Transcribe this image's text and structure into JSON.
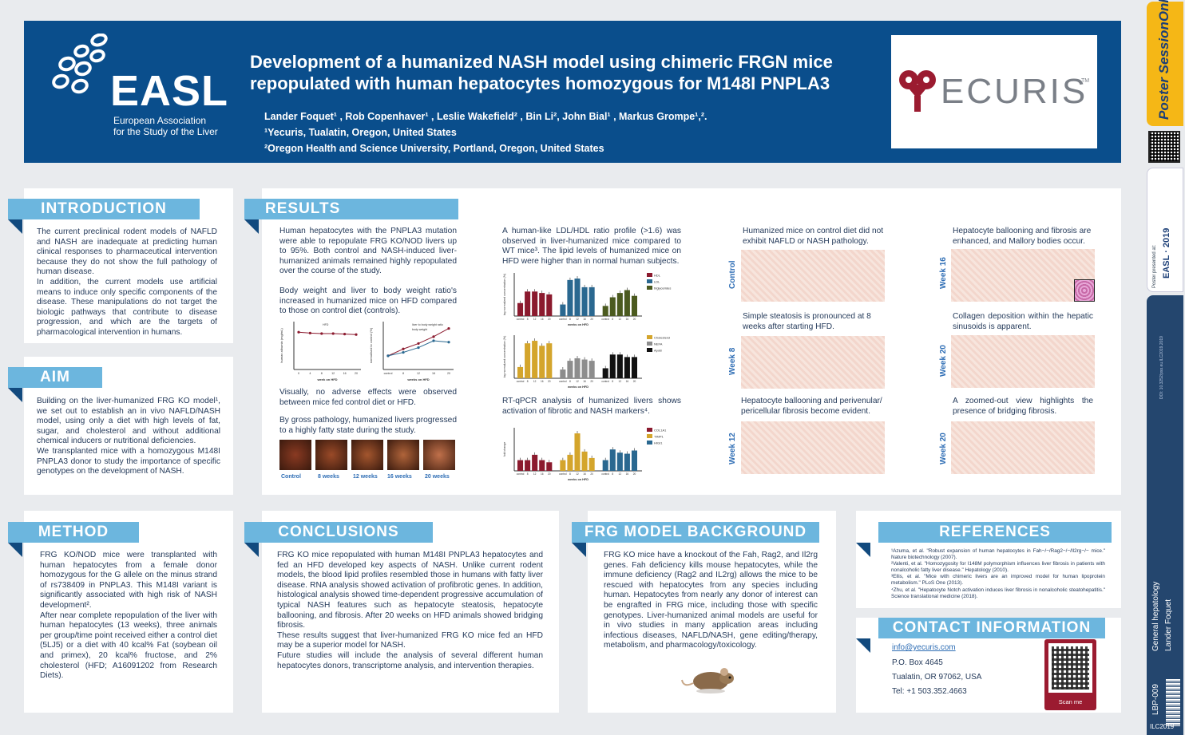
{
  "header": {
    "org_name": "EASL",
    "org_full": "European Association\nfor the Study of the Liver",
    "title": "Development of a humanized NASH model using chimeric FRGN mice repopulated with human hepatocytes homozygous for M148I PNPLA3",
    "authors": "Lander Foquet¹ , Rob Copenhaver¹ , Leslie Wakefield² , Bin Li², John Bial¹ , Markus Grompe¹,².",
    "affil1": "¹Yecuris, Tualatin, Oregon, United States",
    "affil2": "²Oregon Health and Science University, Portland, Oregon, United States",
    "sponsor": "ECURIS",
    "tm": "TM"
  },
  "intro": {
    "heading": "INTRODUCTION",
    "p1": "The current preclinical rodent models of NAFLD and NASH are inadequate at predicting human clinical responses to pharmaceutical intervention because they do not show the full pathology of human disease.",
    "p2": "In addition, the current models use artificial means to induce only specific components of the disease. These manipulations do not target the biologic pathways that contribute to disease progression, and which are the targets of pharmacological intervention in humans."
  },
  "aim": {
    "heading": "AIM",
    "p1": "Building on the liver-humanized FRG KO model¹, we set out to establish an in vivo NAFLD/NASH model, using only a diet with high levels of fat, sugar, and cholesterol and without additional chemical inducers or nutritional deficiencies.",
    "p2": "We transplanted mice with a homozygous M148I PNPLA3 donor to study the importance of specific genotypes on the development of NASH."
  },
  "method": {
    "heading": "METHOD",
    "p1": "FRG KO/NOD mice were transplanted with human hepatocytes from a female donor homozygous for the G allele on the minus strand of rs738409 in PNPLA3. This M148I variant is significantly associated with high risk of NASH development².",
    "p2": "After near complete repopulation of the liver with human hepatocytes (13 weeks), three animals per group/time point received either a control diet (5LJ5) or a diet with 40 kcal% Fat (soybean oil and primex), 20 kcal% fructose, and 2% cholesterol (HFD; A16091202 from Research Diets)."
  },
  "results": {
    "heading": "RESULTS",
    "p1": "Human hepatocytes with the PNPLA3 mutation were able to repopulate FRG KO/NOD livers up to 95%. Both control and NASH-induced liver-humanized animals remained highly repopulated over the course of the study.",
    "p2": "Body weight and liver to body weight ratio's increased in humanized mice on HFD compared to those on control diet (controls).",
    "p3": "Visually, no adverse effects were observed between mice fed control diet or HFD.",
    "p4": "By gross pathology, humanized livers progressed to a highly fatty state during the study.",
    "photos": [
      "Control",
      "8 weeks",
      "12 weeks",
      "16 weeks",
      "20 weeks"
    ],
    "p5": "A human-like LDL/HDL ratio profile (>1.6) was observed in liver-humanized mice compared to WT mice³. The lipid levels of humanized mice on HFD were higher than in normal human subjects.",
    "p6": "RT-qPCR analysis of humanized livers shows activation of fibrotic and NASH markers⁴.",
    "h1": "Humanized mice on control diet did not exhibit NAFLD or NASH pathology.",
    "h2": "Simple steatosis is pronounced at 8 weeks after starting HFD.",
    "h3": "Hepatocyte ballooning and perivenular/ pericellular fibrosis become evident.",
    "h4": "Hepatocyte ballooning and fibrosis are enhanced, and Mallory bodies occur.",
    "h5": "Collagen deposition within the hepatic sinusoids is apparent.",
    "h6": "A zoomed-out view highlights the presence of bridging fibrosis.",
    "row_labels": [
      "Control",
      "Week 8",
      "Week 12",
      "Week 16",
      "Week 20",
      "Week 20"
    ]
  },
  "chart_data": [
    {
      "type": "line",
      "xlabel": "week on HFD",
      "ylabel": "human albumin (mg/mL)",
      "x": [
        0,
        4,
        8,
        12,
        16,
        20
      ],
      "series": [
        {
          "name": "HFD",
          "values": [
            7.8,
            7.6,
            7.5,
            7.5,
            7.4,
            7.3
          ]
        }
      ],
      "ylim": [
        0,
        10
      ]
    },
    {
      "type": "line",
      "xlabel": "weeks on HFD",
      "ylabel": "normalised to control (%)",
      "x": [
        "control",
        8,
        12,
        16,
        20
      ],
      "series": [
        {
          "name": "liver to body weight ratio",
          "values": [
            100,
            110,
            118,
            128,
            140
          ]
        },
        {
          "name": "body weight",
          "values": [
            100,
            105,
            112,
            122,
            120
          ]
        }
      ],
      "ylim": [
        80,
        150
      ]
    },
    {
      "type": "bar",
      "xlabel": "weeks on HFD",
      "ylabel": "log normalized concentration (%)",
      "categories": [
        "control",
        "8",
        "12",
        "16",
        "20"
      ],
      "series": [
        {
          "name": "HDL",
          "values": [
            45,
            85,
            85,
            80,
            75
          ]
        },
        {
          "name": "LDL",
          "values": [
            40,
            125,
            130,
            100,
            100
          ]
        },
        {
          "name": "triglycerides",
          "values": [
            35,
            65,
            80,
            90,
            70
          ]
        }
      ]
    },
    {
      "type": "bar",
      "xlabel": "weeks on HFD",
      "ylabel": "log normalized concentration (%)",
      "categories": [
        "control",
        "8",
        "12",
        "16",
        "20"
      ],
      "series": [
        {
          "name": "Cholesterol",
          "values": [
            45,
            140,
            150,
            130,
            140
          ]
        },
        {
          "name": "NEFA",
          "values": [
            35,
            70,
            80,
            75,
            70
          ]
        },
        {
          "name": "ApoB",
          "values": [
            40,
            95,
            95,
            85,
            85
          ]
        }
      ]
    },
    {
      "type": "bar",
      "xlabel": "weeks on HFD",
      "ylabel": "fold change",
      "categories": [
        "control",
        "8",
        "12",
        "16",
        "20"
      ],
      "series": [
        {
          "name": "COL1A1",
          "values": [
            1,
            1,
            1.5,
            1,
            0.8
          ]
        },
        {
          "name": "TIMP1",
          "values": [
            1,
            1.5,
            3.5,
            1.8,
            1.2
          ]
        },
        {
          "name": "HIGI1",
          "values": [
            1,
            2,
            1.7,
            1.6,
            1.9
          ]
        }
      ]
    }
  ],
  "conclusions": {
    "heading": "CONCLUSIONS",
    "p1": "FRG KO mice repopulated with human M148I PNPLA3 hepatocytes and fed an HFD developed key aspects of NASH. Unlike current rodent models, the blood lipid profiles resembled those in humans with fatty liver disease. RNA analysis showed activation of profibrotic genes. In addition, histological analysis showed time-dependent progressive accumulation of typical NASH features such as hepatocyte steatosis, hepatocyte ballooning, and fibrosis. After 20 weeks on HFD animals showed bridging fibrosis.",
    "p2": "These results suggest that liver-humanized FRG KO mice fed an HFD may be a superior model for NASH.",
    "p3": "Future studies will include the analysis of several different human hepatocytes donors, transcriptome analysis, and intervention therapies."
  },
  "frg": {
    "heading": "FRG MODEL BACKGROUND",
    "p1": "FRG KO mice have a knockout of the Fah, Rag2, and Il2rg genes. Fah deficiency kills mouse hepatocytes, while the immune deficiency (Rag2 and IL2rg) allows the mice to be rescued with hepatocytes from any species including human. Hepatocytes from nearly any donor of interest can be engrafted in FRG mice, including those with specific genotypes. Liver-humanized animal models are useful for in vivo studies in many application areas including infectious diseases, NAFLD/NASH, gene editing/therapy, metabolism, and pharmacology/toxicology."
  },
  "refs": {
    "heading": "REFERENCES",
    "items": [
      "¹Azuma, et al. \"Robust expansion of human hepatocytes in Fah−/−/Rag2−/−/Il2rg−/− mice.\" Nature biotechnology (2007).",
      "²Valenti, et al. \"Homozygosity for I148M polymorphism influences liver fibrosis in patients with nonalcoholic fatty liver disease.\" Hepatology (2010).",
      "³Ellis, et al. \"Mice with chimeric livers are an improved model for human lipoprotein metabolism.\" PLoS One (2013).",
      "⁴Zhu, et al. \"Hepatocyte Notch activation induces liver fibrosis in nonalcoholic steatohepatitis.\" Science translational medicine (2018)."
    ]
  },
  "contact": {
    "heading": "CONTACT INFORMATION",
    "email": "info@yecuris.com",
    "box": "P.O. Box 4645",
    "city": "Tualatin, OR 97062, USA",
    "tel": "Tel: +1 503.352.4663",
    "scan": "Scan me"
  },
  "sidebar": {
    "brand": "Poster SessionOnline",
    "presented": "Poster presented at:",
    "doi": "DOI: 10.3252/pso.eu.ILC2019.2019",
    "topic": "General hepatology",
    "author": "Lander Foquet",
    "code": "LBP-009",
    "event": "ILC2019"
  },
  "colors": {
    "header": "#0a4e8c",
    "section": "#6cb6de",
    "navy": "#0b3d72",
    "bar1": "#8b1a2e",
    "bar2": "#2a6890",
    "bar3": "#4b5a1f",
    "bar4": "#d4a52c",
    "bar5": "#8d8d8d",
    "bar6": "#111111"
  }
}
